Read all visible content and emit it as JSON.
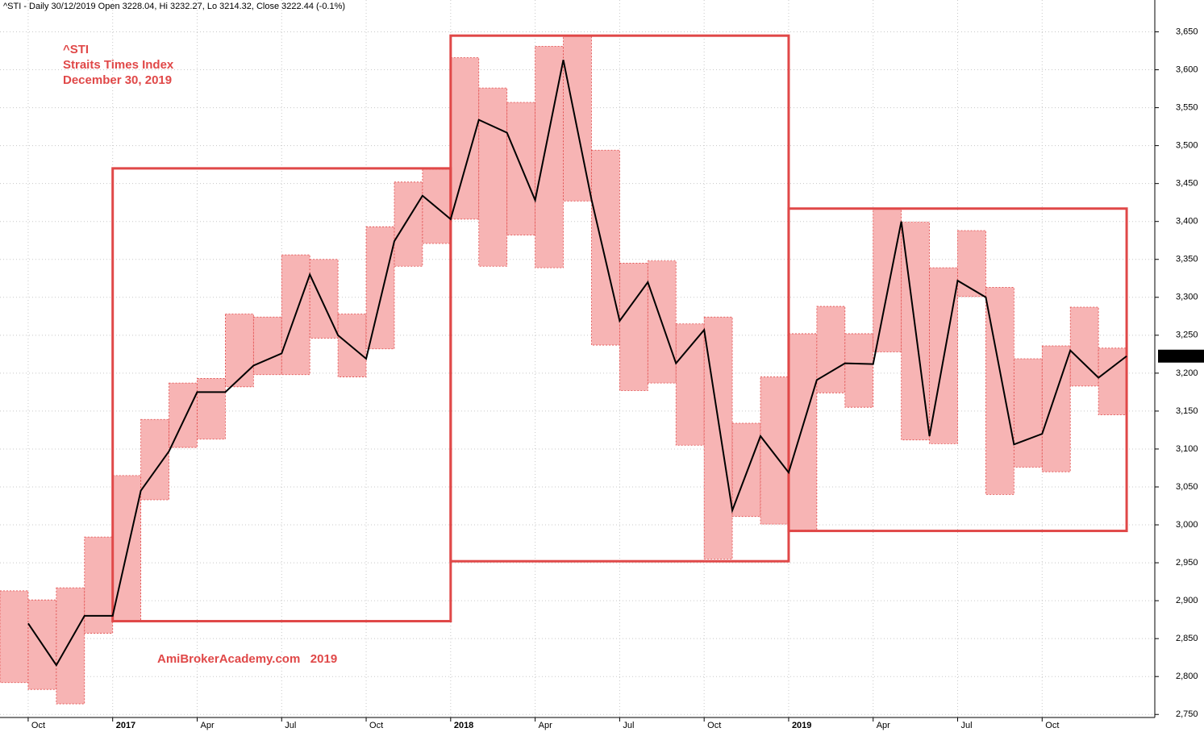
{
  "chart_data": {
    "type": "range-line",
    "title": "^STI - Daily 30/12/2019 Open 3228.04, Hi 3232.27, Lo 3214.32, Close 3222.44 (-0.1%)",
    "annotations": [
      "^STI",
      "Straits Times Index",
      "December 30, 2019",
      "AmiBrokerAcademy.com   2019"
    ],
    "months": [
      "2016-09",
      "2016-10",
      "2016-11",
      "2016-12",
      "2017-01",
      "2017-02",
      "2017-03",
      "2017-04",
      "2017-05",
      "2017-06",
      "2017-07",
      "2017-08",
      "2017-09",
      "2017-10",
      "2017-11",
      "2017-12",
      "2018-01",
      "2018-02",
      "2018-03",
      "2018-04",
      "2018-05",
      "2018-06",
      "2018-07",
      "2018-08",
      "2018-09",
      "2018-10",
      "2018-11",
      "2018-12",
      "2019-01",
      "2019-02",
      "2019-03",
      "2019-04",
      "2019-05",
      "2019-06",
      "2019-07",
      "2019-08",
      "2019-09",
      "2019-10",
      "2019-11",
      "2019-12"
    ],
    "high": [
      2913,
      2901,
      2917,
      2984,
      3065,
      3139,
      3187,
      3193,
      3278,
      3274,
      3356,
      3350,
      3278,
      3393,
      3452,
      3469,
      3616,
      3576,
      3557,
      3631,
      3645,
      3494,
      3345,
      3348,
      3265,
      3274,
      3134,
      3195,
      3252,
      3288,
      3252,
      3416,
      3399,
      3339,
      3388,
      3313,
      3219,
      3236,
      3287,
      3233
    ],
    "low": [
      2792,
      2783,
      2764,
      2857,
      2873,
      3033,
      3102,
      3113,
      3182,
      3198,
      3198,
      3246,
      3195,
      3232,
      3341,
      3371,
      3403,
      3341,
      3382,
      3339,
      3427,
      3237,
      3177,
      3187,
      3105,
      2955,
      3011,
      3001,
      2993,
      3174,
      3155,
      3228,
      3112,
      3107,
      3301,
      3040,
      3076,
      3070,
      3183,
      3145
    ],
    "close": [
      2870,
      2815,
      2880,
      2880,
      3045,
      3097,
      3175,
      3175,
      3210,
      3226,
      3330,
      3250,
      3219,
      3374,
      3434,
      3403,
      3534,
      3517,
      3428,
      3613,
      3429,
      3269,
      3320,
      3213,
      3257,
      3019,
      3117,
      3069,
      3191,
      3213,
      3212,
      3400,
      3117,
      3322,
      3300,
      3106,
      3120,
      3230,
      3194,
      3222.44
    ],
    "last_label": "3,222.44",
    "periods": [
      {
        "start": "2017-01",
        "end": "2017-12",
        "high": 3470,
        "low": 2873
      },
      {
        "start": "2018-01",
        "end": "2018-12",
        "high": 3645,
        "low": 2952
      },
      {
        "start": "2019-01",
        "end": "2019-12",
        "high": 3417,
        "low": 2992
      }
    ],
    "range_color": "#f7b4b4",
    "period_color": "#e04848",
    "line_color": "#000000",
    "xlim": [
      "2016-09",
      "2020-02"
    ],
    "xticks": [
      {
        "value": "2016-10",
        "label": "Oct"
      },
      {
        "value": "2017-01",
        "label": "2017"
      },
      {
        "value": "2017-04",
        "label": "Apr"
      },
      {
        "value": "2017-07",
        "label": "Jul"
      },
      {
        "value": "2017-10",
        "label": "Oct"
      },
      {
        "value": "2018-01",
        "label": "2018"
      },
      {
        "value": "2018-04",
        "label": "Apr"
      },
      {
        "value": "2018-07",
        "label": "Jul"
      },
      {
        "value": "2018-10",
        "label": "Oct"
      },
      {
        "value": "2019-01",
        "label": "2019"
      },
      {
        "value": "2019-04",
        "label": "Apr"
      },
      {
        "value": "2019-07",
        "label": "Jul"
      },
      {
        "value": "2019-10",
        "label": "Oct"
      }
    ],
    "ylim": [
      2746,
      3692
    ],
    "yticks": [
      {
        "value": 2750,
        "label": "2,750"
      },
      {
        "value": 2800,
        "label": "2,800"
      },
      {
        "value": 2850,
        "label": "2,850"
      },
      {
        "value": 2900,
        "label": "2,900"
      },
      {
        "value": 2950,
        "label": "2,950"
      },
      {
        "value": 3000,
        "label": "3,000"
      },
      {
        "value": 3050,
        "label": "3,050"
      },
      {
        "value": 3100,
        "label": "3,100"
      },
      {
        "value": 3150,
        "label": "3,150"
      },
      {
        "value": 3200,
        "label": "3,200"
      },
      {
        "value": 3250,
        "label": "3,250"
      },
      {
        "value": 3300,
        "label": "3,300"
      },
      {
        "value": 3350,
        "label": "3,350"
      },
      {
        "value": 3400,
        "label": "3,400"
      },
      {
        "value": 3450,
        "label": "3,450"
      },
      {
        "value": 3500,
        "label": "3,500"
      },
      {
        "value": 3550,
        "label": "3,550"
      },
      {
        "value": 3600,
        "label": "3,600"
      },
      {
        "value": 3650,
        "label": "3,650"
      }
    ],
    "grid": true
  }
}
